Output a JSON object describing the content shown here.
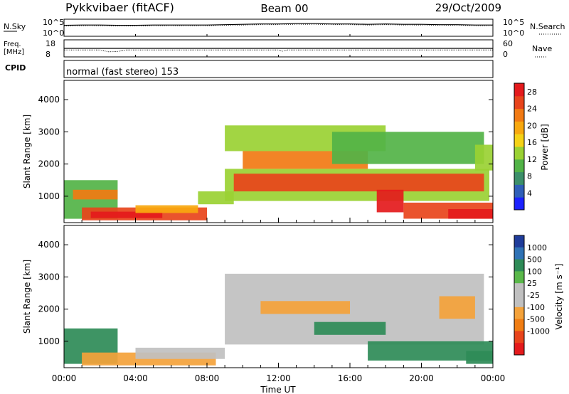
{
  "chart_data": [
    {
      "type": "line",
      "panel": "noise",
      "title": "Pykkvibaer (fitACF)",
      "beam_label": "Beam 00",
      "date_label": "29/Oct/2009",
      "left_label": "N.Sky",
      "left_ticks": [
        "10^5",
        "10^0"
      ],
      "right_label": "N.Search",
      "right_ticks": [
        "10^5",
        "10^0"
      ],
      "ylim_log10": [
        0,
        5
      ],
      "x_hours": [
        0,
        1,
        2,
        3,
        4,
        5,
        6,
        7,
        8,
        9,
        10,
        11,
        12,
        13,
        14,
        15,
        16,
        17,
        18,
        19,
        20,
        21,
        22,
        23,
        24
      ],
      "sky_log10": [
        3.2,
        3.3,
        3.3,
        3.2,
        3.2,
        3.3,
        3.3,
        3.3,
        3.3,
        3.4,
        3.5,
        3.6,
        3.6,
        3.7,
        3.7,
        3.6,
        3.6,
        3.5,
        3.6,
        3.5,
        3.5,
        3.4,
        3.4,
        3.3,
        3.3
      ],
      "search_log10": [
        3.0,
        3.1,
        3.1,
        3.0,
        3.0,
        3.1,
        3.1,
        3.1,
        3.1,
        3.2,
        3.3,
        3.4,
        3.4,
        3.5,
        3.5,
        3.4,
        3.4,
        3.3,
        3.4,
        3.3,
        3.3,
        3.2,
        3.2,
        3.1,
        3.1
      ],
      "colors": {
        "sky": "#000000",
        "search": "#000000"
      }
    },
    {
      "type": "line",
      "panel": "frequency",
      "left_label_1": "Freq.",
      "left_label_2": "[MHz]",
      "left_ticks": [
        "18",
        "8"
      ],
      "ylim_freq": [
        8,
        18
      ],
      "right_label": "Nave",
      "right_ticks": [
        "60",
        "0"
      ],
      "ylim_nave": [
        0,
        60
      ],
      "x_hours": [
        0,
        1,
        2,
        2.5,
        3,
        3.5,
        4,
        6,
        8,
        10,
        12,
        12.2,
        12.5,
        14,
        16,
        18,
        20,
        22,
        24
      ],
      "freq_mhz": [
        12.1,
        12.1,
        12.1,
        11.0,
        11.2,
        12.1,
        12.1,
        12.1,
        12.1,
        12.1,
        12.1,
        11.3,
        12.1,
        12.1,
        12.1,
        12.1,
        12.1,
        12.1,
        12.1
      ],
      "nave": [
        30,
        30,
        30,
        30,
        30,
        30,
        30,
        30,
        30,
        30,
        30,
        30,
        30,
        30,
        30,
        30,
        30,
        30,
        30
      ],
      "colors": {
        "freq": "#000000",
        "nave": "#000000"
      }
    },
    {
      "type": "table",
      "panel": "cpid",
      "label": "CPID",
      "value": "normal (fast stereo) 153"
    },
    {
      "type": "heatmap",
      "panel": "power",
      "ylabel": "Slant Range [km]",
      "yticks": [
        1000,
        2000,
        3000,
        4000
      ],
      "ylim": [
        180,
        4600
      ],
      "colorbar_label": "Power [dB]",
      "colorbar_ticks": [
        4,
        8,
        12,
        16,
        20,
        24,
        28
      ],
      "colorbar_range": [
        0,
        30
      ],
      "colormap": [
        "#1b22ff",
        "#2f5fb8",
        "#3c8f6a",
        "#52b347",
        "#9ad133",
        "#f5d216",
        "#f8a80f",
        "#f17a13",
        "#e8441b",
        "#e41a1c"
      ],
      "regions": [
        {
          "t0": 0.0,
          "t1": 3.0,
          "r0": 300,
          "r1": 1500,
          "value": 10
        },
        {
          "t0": 0.5,
          "t1": 3.0,
          "r0": 900,
          "r1": 1200,
          "value": 22
        },
        {
          "t0": 1.0,
          "t1": 8.0,
          "r0": 250,
          "r1": 650,
          "value": 24
        },
        {
          "t0": 1.5,
          "t1": 5.5,
          "r0": 320,
          "r1": 520,
          "value": 28
        },
        {
          "t0": 4.0,
          "t1": 7.5,
          "r0": 480,
          "r1": 720,
          "value": 18
        },
        {
          "t0": 7.5,
          "t1": 9.5,
          "r0": 750,
          "r1": 1150,
          "value": 14
        },
        {
          "t0": 9.0,
          "t1": 23.8,
          "r0": 850,
          "r1": 1850,
          "value": 12
        },
        {
          "t0": 9.5,
          "t1": 23.5,
          "r0": 1150,
          "r1": 1700,
          "value": 26
        },
        {
          "t0": 10.0,
          "t1": 17.0,
          "r0": 1850,
          "r1": 2400,
          "value": 22
        },
        {
          "t0": 9.0,
          "t1": 18.0,
          "r0": 2400,
          "r1": 3200,
          "value": 12
        },
        {
          "t0": 15.0,
          "t1": 23.5,
          "r0": 2000,
          "r1": 3000,
          "value": 10
        },
        {
          "t0": 17.5,
          "t1": 19.0,
          "r0": 500,
          "r1": 1200,
          "value": 28
        },
        {
          "t0": 19.0,
          "t1": 24.0,
          "r0": 300,
          "r1": 800,
          "value": 24
        },
        {
          "t0": 21.5,
          "t1": 24.0,
          "r0": 300,
          "r1": 600,
          "value": 28
        },
        {
          "t0": 23.0,
          "t1": 24.0,
          "r0": 1800,
          "r1": 2600,
          "value": 12
        }
      ]
    },
    {
      "type": "heatmap",
      "panel": "velocity",
      "ylabel": "Slant Range [km]",
      "yticks": [
        1000,
        2000,
        3000,
        4000
      ],
      "ylim": [
        180,
        4600
      ],
      "xlabel": "Time UT",
      "xticks": [
        "00:00",
        "04:00",
        "08:00",
        "12:00",
        "16:00",
        "20:00",
        "00:00"
      ],
      "xtick_hours": [
        0,
        4,
        8,
        12,
        16,
        20,
        24
      ],
      "xlim_hours": [
        0,
        24
      ],
      "colorbar_label": "Velocity [m s⁻¹]",
      "colorbar_ticks": [
        "1000",
        "500",
        "100",
        "25",
        "-25",
        "-100",
        "-500",
        "-1000"
      ],
      "colormap": [
        "#1f3c9a",
        "#2f72b5",
        "#2e8b57",
        "#5ab84a",
        "#c0c0c0",
        "#c0c0c0",
        "#f4a23a",
        "#f07d13",
        "#e8441b",
        "#e41a1c"
      ],
      "regions": [
        {
          "t0": 0.0,
          "t1": 3.0,
          "r0": 300,
          "r1": 1400,
          "value": 150
        },
        {
          "t0": 1.0,
          "t1": 8.5,
          "r0": 250,
          "r1": 650,
          "value": -200
        },
        {
          "t0": 4.0,
          "t1": 9.0,
          "r0": 450,
          "r1": 800,
          "value": 0
        },
        {
          "t0": 9.0,
          "t1": 23.5,
          "r0": 900,
          "r1": 3100,
          "value": 0
        },
        {
          "t0": 11.0,
          "t1": 16.0,
          "r0": 1850,
          "r1": 2250,
          "value": -300
        },
        {
          "t0": 14.0,
          "t1": 18.0,
          "r0": 1200,
          "r1": 1600,
          "value": 150
        },
        {
          "t0": 17.0,
          "t1": 24.0,
          "r0": 400,
          "r1": 1000,
          "value": 150
        },
        {
          "t0": 21.0,
          "t1": 23.0,
          "r0": 1700,
          "r1": 2400,
          "value": -300
        },
        {
          "t0": 22.5,
          "t1": 24.0,
          "r0": 300,
          "r1": 700,
          "value": 400
        }
      ]
    }
  ]
}
